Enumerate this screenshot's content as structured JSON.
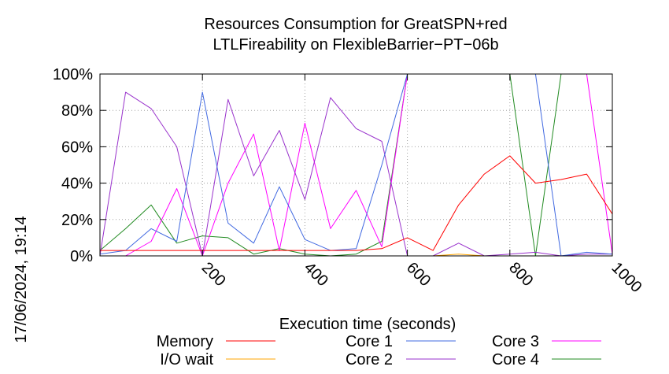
{
  "chart_data": {
    "type": "line",
    "title": [
      "Resources Consumption for GreatSPN+red",
      "LTLFireability on FlexibleBarrier−PT−06b"
    ],
    "xlabel": "Execution time (seconds)",
    "ylabel": "",
    "timestamp": "17/06/2024, 19:14",
    "xlim": [
      0,
      1000
    ],
    "ylim": [
      0,
      100
    ],
    "x_ticks": [
      {
        "value": 200,
        "label": "200"
      },
      {
        "value": 400,
        "label": "400"
      },
      {
        "value": 600,
        "label": "600"
      },
      {
        "value": 800,
        "label": "800"
      },
      {
        "value": 1000,
        "label": "1000"
      }
    ],
    "y_ticks": [
      {
        "value": 0,
        "label": "0%"
      },
      {
        "value": 20,
        "label": "20%"
      },
      {
        "value": 40,
        "label": "40%"
      },
      {
        "value": 60,
        "label": "60%"
      },
      {
        "value": 80,
        "label": "80%"
      },
      {
        "value": 100,
        "label": "100%"
      }
    ],
    "grid": true,
    "legend_position": "bottom",
    "series": [
      {
        "name": "Memory",
        "color": "#ff0000",
        "points": [
          [
            0,
            3
          ],
          [
            50,
            3
          ],
          [
            100,
            3
          ],
          [
            150,
            3
          ],
          [
            200,
            3
          ],
          [
            250,
            3
          ],
          [
            300,
            3
          ],
          [
            350,
            3
          ],
          [
            400,
            3
          ],
          [
            450,
            3
          ],
          [
            500,
            3
          ],
          [
            550,
            4
          ],
          [
            600,
            10
          ],
          [
            650,
            3
          ],
          [
            700,
            28
          ],
          [
            750,
            45
          ],
          [
            800,
            55
          ],
          [
            850,
            40
          ],
          [
            900,
            42
          ],
          [
            950,
            45
          ],
          [
            1000,
            23
          ]
        ]
      },
      {
        "name": "I/O wait",
        "color": "#ffa500",
        "points": [
          [
            0,
            0
          ],
          [
            50,
            0
          ],
          [
            100,
            0
          ],
          [
            150,
            0
          ],
          [
            200,
            0
          ],
          [
            250,
            0
          ],
          [
            300,
            0
          ],
          [
            350,
            0
          ],
          [
            400,
            0
          ],
          [
            450,
            0
          ],
          [
            500,
            0
          ],
          [
            550,
            0
          ],
          [
            600,
            0
          ],
          [
            650,
            0
          ],
          [
            700,
            1
          ],
          [
            750,
            0
          ],
          [
            800,
            0
          ],
          [
            850,
            0
          ],
          [
            900,
            0
          ],
          [
            950,
            0
          ],
          [
            1000,
            0
          ]
        ]
      },
      {
        "name": "Core 1",
        "color": "#4169e1",
        "points": [
          [
            0,
            1
          ],
          [
            50,
            3
          ],
          [
            100,
            15
          ],
          [
            150,
            8
          ],
          [
            200,
            90
          ],
          [
            250,
            18
          ],
          [
            300,
            7
          ],
          [
            350,
            38
          ],
          [
            400,
            9
          ],
          [
            450,
            3
          ],
          [
            500,
            4
          ],
          [
            550,
            50
          ],
          [
            600,
            100
          ],
          [
            650,
            100
          ],
          [
            700,
            100
          ],
          [
            750,
            100
          ],
          [
            800,
            100
          ],
          [
            850,
            100
          ],
          [
            900,
            0
          ],
          [
            950,
            2
          ],
          [
            1000,
            1
          ]
        ]
      },
      {
        "name": "Core 2",
        "color": "#9932cc",
        "points": [
          [
            0,
            0
          ],
          [
            50,
            90
          ],
          [
            100,
            81
          ],
          [
            150,
            60
          ],
          [
            200,
            0
          ],
          [
            250,
            86
          ],
          [
            300,
            44
          ],
          [
            350,
            69
          ],
          [
            400,
            31
          ],
          [
            450,
            87
          ],
          [
            500,
            70
          ],
          [
            550,
            63
          ],
          [
            600,
            0
          ],
          [
            650,
            0
          ],
          [
            700,
            7
          ],
          [
            750,
            0
          ],
          [
            800,
            1
          ],
          [
            850,
            2
          ],
          [
            900,
            0
          ],
          [
            950,
            1
          ],
          [
            1000,
            1
          ]
        ]
      },
      {
        "name": "Core 3",
        "color": "#ff00ff",
        "points": [
          [
            0,
            0
          ],
          [
            50,
            0
          ],
          [
            100,
            8
          ],
          [
            150,
            37
          ],
          [
            200,
            0
          ],
          [
            250,
            40
          ],
          [
            300,
            67
          ],
          [
            350,
            3
          ],
          [
            400,
            73
          ],
          [
            450,
            15
          ],
          [
            500,
            36
          ],
          [
            550,
            5
          ],
          [
            600,
            100
          ],
          [
            650,
            100
          ],
          [
            700,
            100
          ],
          [
            750,
            100
          ],
          [
            800,
            100
          ],
          [
            850,
            100
          ],
          [
            900,
            100
          ],
          [
            950,
            100
          ],
          [
            1000,
            1
          ]
        ]
      },
      {
        "name": "Core 4",
        "color": "#228b22",
        "points": [
          [
            0,
            3
          ],
          [
            50,
            15
          ],
          [
            100,
            28
          ],
          [
            150,
            7
          ],
          [
            200,
            11
          ],
          [
            250,
            10
          ],
          [
            300,
            1
          ],
          [
            350,
            4
          ],
          [
            400,
            1
          ],
          [
            450,
            0
          ],
          [
            500,
            1
          ],
          [
            550,
            8
          ],
          [
            600,
            100
          ],
          [
            650,
            100
          ],
          [
            700,
            100
          ],
          [
            750,
            100
          ],
          [
            800,
            100
          ],
          [
            850,
            0
          ],
          [
            900,
            100
          ],
          [
            950,
            100
          ],
          [
            1000,
            100
          ]
        ]
      }
    ]
  }
}
